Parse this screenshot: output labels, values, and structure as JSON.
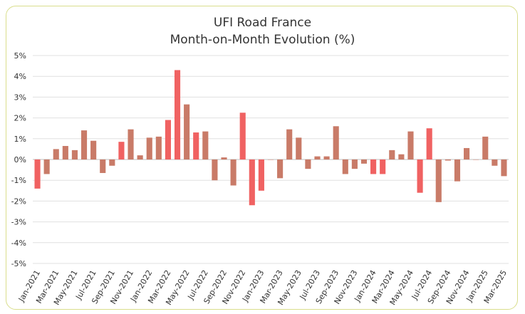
{
  "chart_data": {
    "type": "bar",
    "title": [
      "UFI Road France",
      "Month-on-Month Evolution (%)"
    ],
    "xlabel": "",
    "ylabel": "",
    "ylim": [
      -5,
      5
    ],
    "yticks": [
      "5%",
      "4%",
      "3%",
      "2%",
      "1%",
      "0%",
      "-1%",
      "-2%",
      "-3%",
      "-4%",
      "-5%"
    ],
    "ytick_values": [
      5,
      4,
      3,
      2,
      1,
      0,
      -1,
      -2,
      -3,
      -4,
      -5
    ],
    "grid": true,
    "colors": {
      "bar_a": "#f06262",
      "bar_b": "#c97b68",
      "grid": "#e0e0e0",
      "axis": "#bfbfbf",
      "frame": "#d9de8c"
    },
    "categories": [
      "Jan-2021",
      "Feb-2021",
      "Mar-2021",
      "Apr-2021",
      "May-2021",
      "Jun-2021",
      "Jul-2021",
      "Aug-2021",
      "Sep-2021",
      "Oct-2021",
      "Nov-2021",
      "Dec-2021",
      "Jan-2022",
      "Feb-2022",
      "Mar-2022",
      "Apr-2022",
      "May-2022",
      "Jun-2022",
      "Jul-2022",
      "Aug-2022",
      "Sep-2022",
      "Oct-2022",
      "Nov-2022",
      "Dec-2022",
      "Jan-2023",
      "Feb-2023",
      "Mar-2023",
      "Apr-2023",
      "May-2023",
      "Jun-2023",
      "Jul-2023",
      "Aug-2023",
      "Sep-2023",
      "Oct-2023",
      "Nov-2023",
      "Dec-2023",
      "Jan-2024",
      "Feb-2024",
      "Mar-2024",
      "Apr-2024",
      "May-2024",
      "Jun-2024",
      "Jul-2024",
      "Aug-2024",
      "Sep-2024",
      "Oct-2024",
      "Nov-2024",
      "Dec-2024",
      "Jan-2025",
      "Feb-2025",
      "Mar-2025"
    ],
    "values": [
      -1.4,
      -0.7,
      0.5,
      0.65,
      0.45,
      1.4,
      0.9,
      -0.65,
      -0.3,
      0.85,
      1.45,
      0.2,
      1.05,
      1.1,
      1.9,
      4.3,
      2.65,
      1.3,
      1.35,
      -1.0,
      0.1,
      -1.25,
      2.25,
      -2.2,
      -1.5,
      0.0,
      -0.9,
      1.45,
      1.05,
      -0.45,
      0.15,
      0.15,
      1.6,
      -0.7,
      -0.45,
      -0.2,
      -0.7,
      -0.7,
      0.45,
      0.25,
      1.35,
      -1.6,
      1.5,
      -2.05,
      -0.05,
      -1.05,
      0.55,
      0.0,
      1.1,
      -0.3,
      -0.8
    ],
    "bar_colors": [
      "a",
      "b",
      "b",
      "b",
      "b",
      "b",
      "b",
      "b",
      "b",
      "a",
      "b",
      "b",
      "b",
      "b",
      "a",
      "a",
      "b",
      "a",
      "b",
      "b",
      "b",
      "b",
      "a",
      "a",
      "a",
      "b",
      "b",
      "b",
      "b",
      "b",
      "b",
      "b",
      "b",
      "b",
      "b",
      "b",
      "a",
      "a",
      "b",
      "b",
      "b",
      "a",
      "a",
      "b",
      "b",
      "b",
      "b",
      "b",
      "b",
      "b",
      "b"
    ],
    "x_tick_labels": [
      "Jan-2021",
      "Mar-2021",
      "May-2021",
      "Jul-2021",
      "Sep-2021",
      "Nov-2021",
      "Jan-2022",
      "Mar-2022",
      "May-2022",
      "Jul-2022",
      "Sep-2022",
      "Nov-2022",
      "Jan-2023",
      "Mar-2023",
      "May-2023",
      "Jul-2023",
      "Sep-2023",
      "Nov-2023",
      "Jan-2024",
      "Mar-2024",
      "May-2024",
      "Jul-2024",
      "Sep-2024",
      "Nov-2024",
      "Jan-2025",
      "Mar-2025"
    ]
  }
}
